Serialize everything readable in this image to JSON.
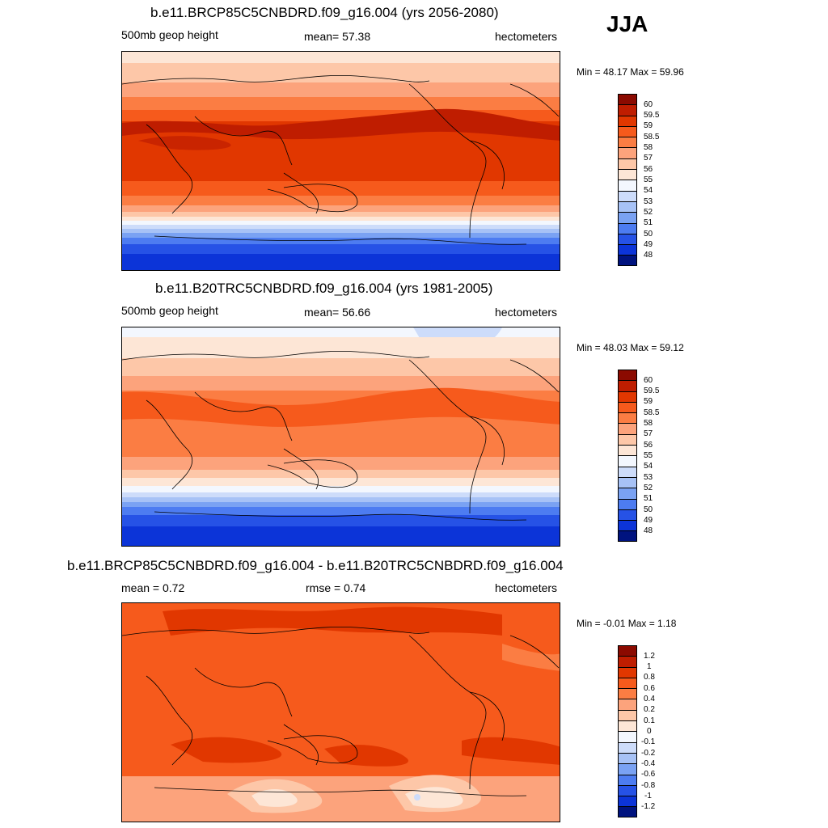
{
  "season": "JJA",
  "panels": [
    {
      "title": "b.e11.BRCP85C5CNBDRD.f09_g16.004 (yrs 2056-2080)",
      "left_label": "500mb geop height",
      "center_label": "mean=  57.38",
      "right_label": "hectometers",
      "minmax": "Min =  48.17 Max =  59.96",
      "colorbar": {
        "labels": [
          "60",
          "59.5",
          "59",
          "58.5",
          "58",
          "57",
          "56",
          "55",
          "54",
          "53",
          "52",
          "51",
          "50",
          "49",
          "48"
        ],
        "colors": [
          "#8b0a00",
          "#bf1d00",
          "#e13700",
          "#f65a1c",
          "#fb7d43",
          "#fca37c",
          "#fdc7a8",
          "#fde6d6",
          "#f3f7fe",
          "#cddcfa",
          "#a7c2f6",
          "#7aa2f3",
          "#4d7cf1",
          "#2652e6",
          "#0c34d8",
          "#00137f"
        ]
      }
    },
    {
      "title": "b.e11.B20TRC5CNBDRD.f09_g16.004 (yrs 1981-2005)",
      "left_label": "500mb geop height",
      "center_label": "mean=  56.66",
      "right_label": "hectometers",
      "minmax": "Min =  48.03 Max =  59.12",
      "colorbar": {
        "labels": [
          "60",
          "59.5",
          "59",
          "58.5",
          "58",
          "57",
          "56",
          "55",
          "54",
          "53",
          "52",
          "51",
          "50",
          "49",
          "48"
        ],
        "colors": [
          "#8b0a00",
          "#bf1d00",
          "#e13700",
          "#f65a1c",
          "#fb7d43",
          "#fca37c",
          "#fdc7a8",
          "#fde6d6",
          "#f3f7fe",
          "#cddcfa",
          "#a7c2f6",
          "#7aa2f3",
          "#4d7cf1",
          "#2652e6",
          "#0c34d8",
          "#00137f"
        ]
      }
    },
    {
      "title": "b.e11.BRCP85C5CNBDRD.f09_g16.004 - b.e11.B20TRC5CNBDRD.f09_g16.004",
      "left_label": "mean =   0.72",
      "center_label": "rmse =   0.74",
      "right_label": "hectometers",
      "minmax": "Min =  -0.01 Max =   1.18",
      "colorbar": {
        "labels": [
          "1.2",
          "1",
          "0.8",
          "0.6",
          "0.4",
          "0.2",
          "0.1",
          "0",
          "-0.1",
          "-0.2",
          "-0.4",
          "-0.6",
          "-0.8",
          "-1",
          "-1.2"
        ],
        "colors": [
          "#8b0a00",
          "#bf1d00",
          "#e13700",
          "#f65a1c",
          "#fb7d43",
          "#fca37c",
          "#fdc7a8",
          "#fde6d6",
          "#f3f7fe",
          "#cddcfa",
          "#a7c2f6",
          "#7aa2f3",
          "#4d7cf1",
          "#2652e6",
          "#0c34d8",
          "#00137f"
        ]
      }
    }
  ]
}
